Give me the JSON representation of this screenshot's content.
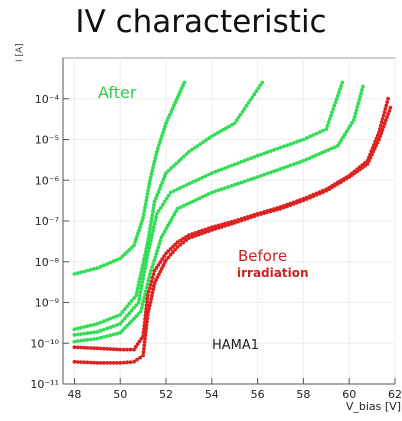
{
  "chart_data": {
    "type": "scatter",
    "title": "IV characteristic",
    "xlabel": "V_bias [V]",
    "ylabel": "",
    "ylabel_cut": "I [A]",
    "yscale": "log",
    "xlim": [
      47.5,
      62
    ],
    "ylim": [
      1e-11,
      0.001
    ],
    "x_ticks": [
      48,
      50,
      52,
      54,
      56,
      58,
      60,
      62
    ],
    "y_ticks": [
      {
        "value": 1e-11,
        "label": "10⁻¹¹"
      },
      {
        "value": 1e-10,
        "label": "10⁻¹⁰"
      },
      {
        "value": 1e-09,
        "label": "10⁻⁹"
      },
      {
        "value": 1e-08,
        "label": "10⁻⁸"
      },
      {
        "value": 1e-07,
        "label": "10⁻⁷"
      },
      {
        "value": 1e-06,
        "label": "10⁻⁶"
      },
      {
        "value": 1e-05,
        "label": "10⁻⁵"
      },
      {
        "value": 0.0001,
        "label": "10⁻⁴"
      }
    ],
    "grid": true,
    "annotations": [
      {
        "text": "After",
        "color": "#33cc55"
      },
      {
        "text": "Before",
        "color": "#cc2222"
      },
      {
        "text": "irradiation",
        "color": "#cc2222"
      },
      {
        "text": "HAMA1",
        "color": "#222222"
      }
    ],
    "series": [
      {
        "color": "#33dd55",
        "points": [
          [
            48,
            5e-09
          ],
          [
            49,
            7e-09
          ],
          [
            50,
            1.2e-08
          ],
          [
            50.6,
            2.5e-08
          ],
          [
            51,
            1.2e-07
          ],
          [
            51.3,
            1e-06
          ],
          [
            51.6,
            5e-06
          ],
          [
            52,
            2.5e-05
          ],
          [
            52.4,
            8e-05
          ],
          [
            52.8,
            0.00025
          ]
        ]
      },
      {
        "color": "#33dd55",
        "points": [
          [
            48,
            2.2e-10
          ],
          [
            49,
            3e-10
          ],
          [
            50,
            5e-10
          ],
          [
            50.7,
            1.5e-09
          ],
          [
            51.2,
            3e-08
          ],
          [
            51.5,
            3e-07
          ],
          [
            52,
            1.5e-06
          ],
          [
            53,
            5e-06
          ],
          [
            54,
            1.2e-05
          ],
          [
            55,
            2.5e-05
          ],
          [
            56.2,
            0.00025
          ]
        ]
      },
      {
        "color": "#33dd55",
        "points": [
          [
            48,
            1.6e-10
          ],
          [
            49,
            1.9e-10
          ],
          [
            50,
            3e-10
          ],
          [
            50.8,
            1e-09
          ],
          [
            51.2,
            1.5e-08
          ],
          [
            51.6,
            1.5e-07
          ],
          [
            52.2,
            5e-07
          ],
          [
            54,
            1.5e-06
          ],
          [
            56,
            4e-06
          ],
          [
            58,
            1e-05
          ],
          [
            59,
            1.8e-05
          ],
          [
            59.7,
            0.00025
          ]
        ]
      },
      {
        "color": "#33dd55",
        "points": [
          [
            48,
            1.1e-10
          ],
          [
            49,
            1.3e-10
          ],
          [
            50,
            1.8e-10
          ],
          [
            50.9,
            6e-10
          ],
          [
            51.3,
            5e-09
          ],
          [
            51.8,
            4e-08
          ],
          [
            52.5,
            2e-07
          ],
          [
            54,
            5e-07
          ],
          [
            56,
            1.2e-06
          ],
          [
            58,
            3e-06
          ],
          [
            59.5,
            7e-06
          ],
          [
            60.2,
            3e-05
          ],
          [
            60.6,
            0.0002
          ]
        ]
      },
      {
        "color": "#dd2222",
        "points": [
          [
            48,
            8e-11
          ],
          [
            49,
            7.5e-11
          ],
          [
            50,
            7e-11
          ],
          [
            50.6,
            7e-11
          ],
          [
            51,
            1.5e-10
          ],
          [
            51.2,
            1.5e-09
          ],
          [
            51.5,
            6e-09
          ],
          [
            52,
            1.6e-08
          ],
          [
            52.5,
            3e-08
          ],
          [
            53,
            4.5e-08
          ],
          [
            54,
            7e-08
          ],
          [
            55,
            1e-07
          ],
          [
            56,
            1.5e-07
          ],
          [
            57,
            2.2e-07
          ],
          [
            58,
            3.5e-07
          ],
          [
            59,
            6e-07
          ],
          [
            60,
            1.3e-06
          ],
          [
            60.8,
            3e-06
          ],
          [
            61.3,
            1.5e-05
          ],
          [
            61.7,
            0.0001
          ]
        ]
      },
      {
        "color": "#dd2222",
        "points": [
          [
            48,
            3.5e-11
          ],
          [
            49,
            3.3e-11
          ],
          [
            50,
            3.3e-11
          ],
          [
            50.6,
            3.5e-11
          ],
          [
            51,
            5e-11
          ],
          [
            51.2,
            5e-10
          ],
          [
            51.5,
            3e-09
          ],
          [
            52,
            1.1e-08
          ],
          [
            52.5,
            2.3e-08
          ],
          [
            53,
            3.8e-08
          ],
          [
            54,
            6e-08
          ],
          [
            55,
            9e-08
          ],
          [
            56,
            1.4e-07
          ],
          [
            57,
            2e-07
          ],
          [
            58,
            3.2e-07
          ],
          [
            59,
            5.5e-07
          ],
          [
            60,
            1.2e-06
          ],
          [
            60.8,
            2.5e-06
          ],
          [
            61.3,
            1e-05
          ],
          [
            61.8,
            6e-05
          ]
        ]
      }
    ]
  }
}
